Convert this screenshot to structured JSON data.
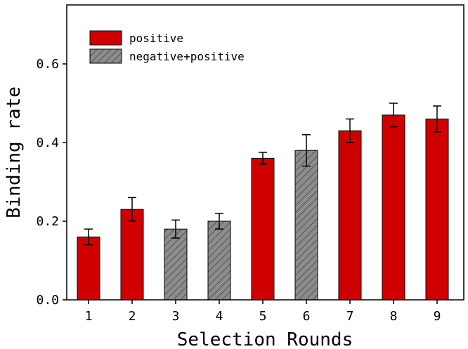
{
  "chart_data": {
    "type": "bar",
    "xlabel": "Selection Rounds",
    "ylabel": "Binding rate",
    "ylim": [
      0,
      0.75
    ],
    "yticks": [
      0.0,
      0.2,
      0.4,
      0.6
    ],
    "ytick_labels": [
      "0.0",
      "0.2",
      "0.4",
      "0.6"
    ],
    "grid": false,
    "legend_position": "top-left",
    "categories": [
      "1",
      "2",
      "3",
      "4",
      "5",
      "6",
      "7",
      "8",
      "9"
    ],
    "values": [
      0.16,
      0.23,
      0.18,
      0.2,
      0.36,
      0.38,
      0.43,
      0.47,
      0.46
    ],
    "errors": [
      0.02,
      0.03,
      0.023,
      0.02,
      0.015,
      0.04,
      0.03,
      0.03,
      0.033
    ],
    "groups": [
      "positive",
      "positive",
      "negative+positive",
      "negative+positive",
      "positive",
      "negative+positive",
      "positive",
      "positive",
      "positive"
    ],
    "series": [
      {
        "name": "positive",
        "color": "#d00000",
        "fill": "solid"
      },
      {
        "name": "negative+positive",
        "color": "#8c8c8c",
        "fill": "hatched"
      }
    ]
  }
}
